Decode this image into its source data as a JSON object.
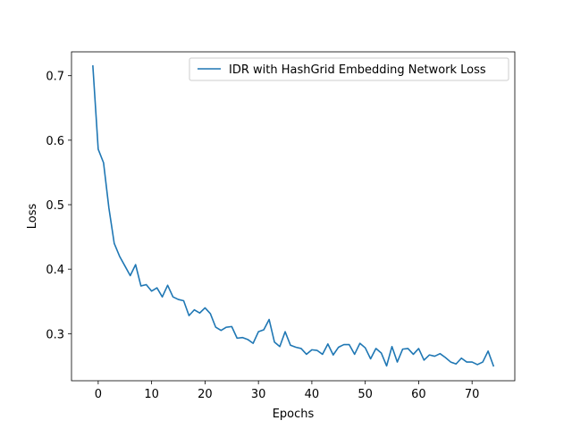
{
  "chart_data": {
    "type": "line",
    "title": "",
    "xlabel": "Epochs",
    "ylabel": "Loss",
    "xlim": [
      -5.0,
      78.0
    ],
    "ylim": [
      0.227,
      0.737
    ],
    "xticks": [
      0,
      10,
      20,
      30,
      40,
      50,
      60,
      70
    ],
    "yticks": [
      0.3,
      0.4,
      0.5,
      0.6,
      0.7
    ],
    "ytick_labels": [
      "0.3",
      "0.4",
      "0.5",
      "0.6",
      "0.7"
    ],
    "grid": false,
    "legend_position": "top-right",
    "colors": {
      "line": "#1f77b4",
      "axis": "#000000",
      "legend_border": "#cccccc"
    },
    "series": [
      {
        "name": "IDR with HashGrid Embedding Network Loss",
        "x": [
          -1,
          0,
          1,
          2,
          3,
          4,
          5,
          6,
          7,
          8,
          9,
          10,
          11,
          12,
          13,
          14,
          15,
          16,
          17,
          18,
          19,
          20,
          21,
          22,
          23,
          24,
          25,
          26,
          27,
          28,
          29,
          30,
          31,
          32,
          33,
          34,
          35,
          36,
          37,
          38,
          39,
          40,
          41,
          42,
          43,
          44,
          45,
          46,
          47,
          48,
          49,
          50,
          51,
          52,
          53,
          54,
          55,
          56,
          57,
          58,
          59,
          60,
          61,
          62,
          63,
          64,
          65,
          66,
          67,
          68,
          69,
          70,
          71,
          72,
          73,
          74
        ],
        "y": [
          0.715,
          0.586,
          0.565,
          0.495,
          0.44,
          0.42,
          0.405,
          0.39,
          0.407,
          0.374,
          0.376,
          0.366,
          0.371,
          0.357,
          0.375,
          0.357,
          0.353,
          0.351,
          0.328,
          0.337,
          0.332,
          0.34,
          0.331,
          0.31,
          0.305,
          0.31,
          0.311,
          0.293,
          0.294,
          0.291,
          0.285,
          0.303,
          0.306,
          0.322,
          0.287,
          0.28,
          0.303,
          0.282,
          0.279,
          0.277,
          0.268,
          0.275,
          0.274,
          0.268,
          0.284,
          0.267,
          0.279,
          0.283,
          0.283,
          0.268,
          0.285,
          0.278,
          0.261,
          0.277,
          0.27,
          0.25,
          0.28,
          0.256,
          0.276,
          0.277,
          0.268,
          0.277,
          0.259,
          0.267,
          0.265,
          0.269,
          0.263,
          0.256,
          0.253,
          0.262,
          0.256,
          0.256,
          0.252,
          0.256,
          0.273,
          0.25
        ]
      }
    ]
  }
}
